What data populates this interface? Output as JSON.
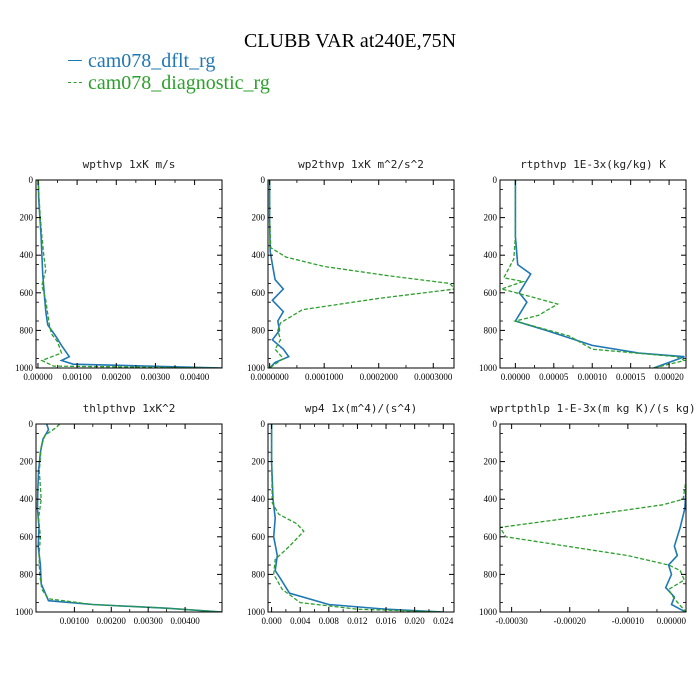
{
  "figure": {
    "title": "CLUBB VAR at240E,75N",
    "legend": [
      {
        "label": "cam078_dflt_rg",
        "color": "#1f77b4",
        "dash": "solid"
      },
      {
        "label": "cam078_diagnostic_rg",
        "color": "#2ca02c",
        "dash": "dashed"
      }
    ]
  },
  "chart_data": [
    {
      "type": "line",
      "title": "wpthvp   1xK m/s",
      "xlim": [
        -5e-05,
        0.0047
      ],
      "ylim": [
        1000,
        0
      ],
      "xticks": [
        0.0,
        0.001,
        0.002,
        0.003,
        0.004
      ],
      "xtick_labels": [
        "0.00000",
        "0.00100",
        "0.00200",
        "0.00300",
        "0.00400"
      ],
      "yticks": [
        0,
        200,
        400,
        600,
        800,
        1000
      ],
      "ytick_labels": [
        "0",
        "200",
        "400",
        "600",
        "800",
        "1000"
      ],
      "series": [
        {
          "name": "cam078_dflt_rg",
          "x": [
            1e-05,
            2e-05,
            5e-05,
            8e-05,
            0.0001,
            0.00012,
            0.00016,
            0.0002,
            0.00025,
            0.00045,
            0.0006,
            0.0008,
            0.0006,
            0.0009,
            0.0047
          ],
          "y": [
            0,
            100,
            200,
            300,
            400,
            500,
            600,
            700,
            770,
            830,
            880,
            940,
            960,
            980,
            1000
          ]
        },
        {
          "name": "cam078_diagnostic_rg",
          "x": [
            1e-05,
            3e-05,
            6e-05,
            0.0001,
            0.00016,
            0.0002,
            0.0001,
            0.0002,
            0.00024,
            0.0003,
            0.00035,
            0.0005,
            0.0006,
            0.0001,
            0.0004,
            0.0046
          ],
          "y": [
            0,
            100,
            200,
            300,
            420,
            480,
            560,
            640,
            700,
            780,
            820,
            860,
            920,
            960,
            990,
            1000
          ]
        }
      ]
    },
    {
      "type": "line",
      "title": "wp2thvp   1xK m^2/s^2",
      "xlim": [
        -3e-06,
        0.000338
      ],
      "ylim": [
        1000,
        0
      ],
      "xticks": [
        0.0,
        0.0001,
        0.0002,
        0.0003
      ],
      "xtick_labels": [
        "0.0000000",
        "0.0001000",
        "0.0002000",
        "0.0003000"
      ],
      "yticks": [
        0,
        200,
        400,
        600,
        800,
        1000
      ],
      "ytick_labels": [
        "0",
        "200",
        "400",
        "600",
        "800",
        "1000"
      ],
      "series": [
        {
          "name": "cam078_dflt_rg",
          "x": [
            0.0,
            0.0,
            1e-06,
            5e-06,
            1e-05,
            2.5e-05,
            5e-06,
            2.5e-05,
            1.5e-05,
            1.8e-05,
            5e-06,
            2.5e-05,
            3.5e-05,
            1e-05,
            0.0
          ],
          "y": [
            0,
            200,
            380,
            450,
            530,
            580,
            640,
            700,
            750,
            800,
            850,
            900,
            940,
            970,
            1000
          ]
        },
        {
          "name": "cam078_diagnostic_rg",
          "x": [
            0.0,
            0.0,
            2e-06,
            3e-05,
            0.0001,
            0.00022,
            0.00033,
            0.00034,
            0.0002,
            6e-05,
            2e-05,
            1.5e-05,
            2e-05,
            1e-05,
            2.5e-05,
            1e-05,
            0.0
          ],
          "y": [
            0,
            200,
            360,
            410,
            460,
            510,
            550,
            580,
            630,
            690,
            760,
            800,
            850,
            900,
            950,
            980,
            1000
          ]
        }
      ]
    },
    {
      "type": "line",
      "title": "rtpthvp   1E-3x(kg/kg) K",
      "xlim": [
        -2e-05,
        0.000222
      ],
      "ylim": [
        1000,
        0
      ],
      "xticks": [
        0.0,
        5e-05,
        0.0001,
        0.00015,
        0.0002
      ],
      "xtick_labels": [
        "0.00000",
        "0.00005",
        "0.00010",
        "0.00015",
        "0.00020"
      ],
      "yticks": [
        0,
        200,
        400,
        600,
        800,
        1000
      ],
      "ytick_labels": [
        "0",
        "200",
        "400",
        "600",
        "800",
        "1000"
      ],
      "series": [
        {
          "name": "cam078_dflt_rg",
          "x": [
            0.0,
            0.0,
            3e-06,
            2e-05,
            5e-06,
            1.5e-05,
            0.0,
            4e-05,
            0.0001,
            0.00016,
            0.00022,
            0.0002,
            0.00018
          ],
          "y": [
            0,
            300,
            450,
            500,
            600,
            650,
            750,
            800,
            880,
            920,
            940,
            970,
            1000
          ]
        },
        {
          "name": "cam078_diagnostic_rg",
          "x": [
            0.0,
            0.0,
            -2e-06,
            -1.5e-05,
            1e-05,
            -1.8e-05,
            2e-05,
            5.5e-05,
            3e-05,
            0.0,
            7e-05,
            0.0001,
            0.00021,
            0.00022,
            0.00018
          ],
          "y": [
            0,
            300,
            420,
            520,
            540,
            580,
            620,
            660,
            720,
            750,
            830,
            900,
            940,
            960,
            1000
          ]
        }
      ]
    },
    {
      "type": "line",
      "title": "thlpthvp   1xK^2",
      "xlim": [
        -4e-05,
        0.005
      ],
      "ylim": [
        1000,
        0
      ],
      "xticks": [
        0.001,
        0.002,
        0.003,
        0.004
      ],
      "xtick_labels": [
        "0.00100",
        "0.00200",
        "0.00300",
        "0.00400"
      ],
      "yticks": [
        0,
        200,
        400,
        600,
        800,
        1000
      ],
      "ytick_labels": [
        "0",
        "200",
        "400",
        "600",
        "800",
        "1000"
      ],
      "series": [
        {
          "name": "cam078_dflt_rg",
          "x": [
            0.00025,
            0.0003,
            0.00015,
            8e-05,
            3e-05,
            1e-05,
            0.0,
            4e-05,
            2e-05,
            8e-05,
            0.0001,
            0.0003,
            0.0015,
            0.0035,
            0.005
          ],
          "y": [
            0,
            30,
            80,
            150,
            250,
            350,
            450,
            550,
            650,
            750,
            850,
            940,
            960,
            980,
            1000
          ]
        },
        {
          "name": "cam078_diagnostic_rg",
          "x": [
            0.0006,
            0.0005,
            0.0002,
            0.0001,
            5e-05,
            0.0001,
            3e-05,
            8e-05,
            4e-05,
            6e-05,
            0.00012,
            0.0003,
            0.0015,
            0.0035,
            0.005
          ],
          "y": [
            0,
            20,
            60,
            120,
            250,
            400,
            500,
            600,
            700,
            800,
            880,
            930,
            960,
            980,
            1000
          ]
        }
      ]
    },
    {
      "type": "line",
      "title": "wp4   1x(m^4)/(s^4)",
      "xlim": [
        -0.0005,
        0.0255
      ],
      "ylim": [
        1000,
        0
      ],
      "xticks": [
        0.0,
        0.004,
        0.008,
        0.012,
        0.016,
        0.02,
        0.024
      ],
      "xtick_labels": [
        "0.000",
        "0.004",
        "0.008",
        "0.012",
        "0.016",
        "0.020",
        "0.024"
      ],
      "yticks": [
        0,
        200,
        400,
        600,
        800,
        1000
      ],
      "ytick_labels": [
        "0",
        "200",
        "400",
        "600",
        "800",
        "1000"
      ],
      "series": [
        {
          "name": "cam078_dflt_rg",
          "x": [
            0.0,
            0.0,
            0.0002,
            0.0005,
            0.0003,
            0.0008,
            0.0005,
            0.0012,
            0.0025,
            0.008,
            0.016,
            0.024
          ],
          "y": [
            0,
            200,
            400,
            500,
            600,
            700,
            780,
            820,
            900,
            960,
            985,
            1000
          ]
        },
        {
          "name": "cam078_diagnostic_rg",
          "x": [
            0.0,
            0.0,
            0.0001,
            0.001,
            0.0035,
            0.0045,
            0.0025,
            0.0005,
            0.0003,
            0.0015,
            0.004,
            0.012,
            0.024
          ],
          "y": [
            0,
            200,
            420,
            480,
            530,
            570,
            650,
            720,
            800,
            880,
            950,
            985,
            1000
          ]
        }
      ]
    },
    {
      "type": "line",
      "title": "wprtpthlp   1-E-3x(m kg K)/(s kg)",
      "xlim": [
        -0.00032,
        0.0
      ],
      "ylim": [
        1000,
        0
      ],
      "xticks": [
        -0.0003,
        -0.0002,
        -0.0001,
        0.0
      ],
      "xtick_labels": [
        "-0.00030",
        "-0.00020",
        "-0.00010",
        "0.00000"
      ],
      "yticks": [
        0,
        200,
        400,
        600,
        800,
        1000
      ],
      "ytick_labels": [
        "0",
        "200",
        "400",
        "600",
        "800",
        "1000"
      ],
      "series": [
        {
          "name": "cam078_dflt_rg",
          "x": [
            0.0,
            0.0,
            -2e-06,
            -1e-05,
            -2e-05,
            -1.5e-05,
            -3e-05,
            -2.5e-05,
            -3.5e-05,
            -2e-05,
            -2.5e-05,
            -1e-05,
            0.0
          ],
          "y": [
            0,
            350,
            450,
            550,
            650,
            700,
            750,
            800,
            870,
            920,
            960,
            985,
            1000
          ]
        },
        {
          "name": "cam078_diagnostic_rg",
          "x": [
            0.0,
            0.0,
            -5e-06,
            -4e-05,
            -0.0002,
            -0.00032,
            -0.00031,
            -0.0001,
            -3e-05,
            -1e-05,
            -3e-06,
            -3e-05,
            -2e-05,
            -1e-05,
            0.0
          ],
          "y": [
            0,
            300,
            400,
            430,
            500,
            550,
            600,
            700,
            750,
            780,
            830,
            880,
            930,
            965,
            1000
          ]
        }
      ]
    }
  ]
}
